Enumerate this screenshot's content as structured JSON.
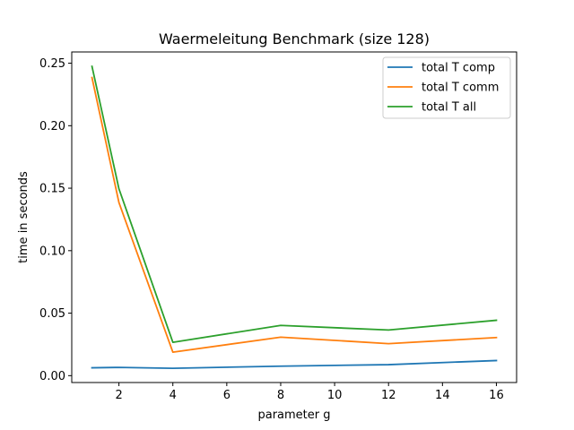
{
  "chart_data": {
    "type": "line",
    "title": "Waermeleitung Benchmark (size 128)",
    "xlabel": "parameter g",
    "ylabel": "time in seconds",
    "x": [
      1,
      2,
      4,
      8,
      12,
      16
    ],
    "xlim": [
      0.25,
      16.75
    ],
    "ylim": [
      -0.0055,
      0.259
    ],
    "xticks": [
      2,
      4,
      6,
      8,
      10,
      12,
      14,
      16
    ],
    "xtick_labels": [
      "2",
      "4",
      "6",
      "8",
      "10",
      "12",
      "14",
      "16"
    ],
    "yticks": [
      0.0,
      0.05,
      0.1,
      0.15,
      0.2,
      0.25
    ],
    "ytick_labels": [
      "0.00",
      "0.05",
      "0.10",
      "0.15",
      "0.20",
      "0.25"
    ],
    "grid": false,
    "legend_position": "top-right",
    "series": [
      {
        "name": "total T comp",
        "color": "#1f77b4",
        "values": [
          0.0063,
          0.0066,
          0.0059,
          0.0076,
          0.0088,
          0.0121
        ]
      },
      {
        "name": "total T comm",
        "color": "#ff7f0e",
        "values": [
          0.2385,
          0.1385,
          0.0188,
          0.0308,
          0.0256,
          0.0305
        ]
      },
      {
        "name": "total T all",
        "color": "#2ca02c",
        "values": [
          0.2475,
          0.1495,
          0.0267,
          0.0402,
          0.0365,
          0.0443
        ]
      }
    ]
  }
}
